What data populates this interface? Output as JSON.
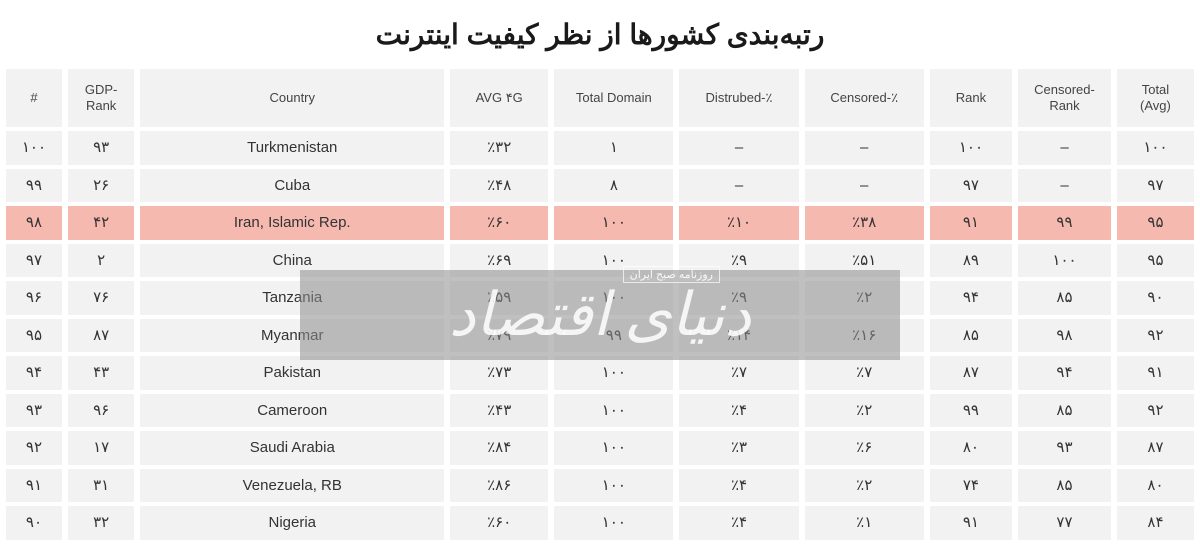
{
  "title": "رتبه‌بندی کشورها از نظر کیفیت اینترنت",
  "columns": [
    {
      "key": "num",
      "label": "#",
      "class": "col-num"
    },
    {
      "key": "gdp",
      "label": "GDP-\nRank",
      "class": "col-gdp"
    },
    {
      "key": "country",
      "label": "Country",
      "class": "col-country"
    },
    {
      "key": "avg4g",
      "label": "AVG ۴G",
      "class": "col-avg4g"
    },
    {
      "key": "domain",
      "label": "Total Domain",
      "class": "col-domain"
    },
    {
      "key": "dist",
      "label": "Distrubed-٪",
      "class": "col-dist"
    },
    {
      "key": "cens",
      "label": "Censored-٪",
      "class": "col-cens"
    },
    {
      "key": "rank",
      "label": "Rank",
      "class": "col-rank"
    },
    {
      "key": "crank",
      "label": "Censored-\nRank",
      "class": "col-crank"
    },
    {
      "key": "total",
      "label": "Total\n(Avg)",
      "class": "col-total"
    }
  ],
  "rows": [
    {
      "num": "۱۰۰",
      "gdp": "۹۳",
      "country": "Turkmenistan",
      "avg4g": "٪۳۲",
      "domain": "۱",
      "dist": "–",
      "cens": "–",
      "rank": "۱۰۰",
      "crank": "–",
      "total": "۱۰۰",
      "hl": false
    },
    {
      "num": "۹۹",
      "gdp": "۲۶",
      "country": "Cuba",
      "avg4g": "٪۴۸",
      "domain": "۸",
      "dist": "–",
      "cens": "–",
      "rank": "۹۷",
      "crank": "–",
      "total": "۹۷",
      "hl": false
    },
    {
      "num": "۹۸",
      "gdp": "۴۲",
      "country": "Iran, Islamic Rep.",
      "avg4g": "٪۶۰",
      "domain": "۱۰۰",
      "dist": "٪۱۰",
      "cens": "٪۳۸",
      "rank": "۹۱",
      "crank": "۹۹",
      "total": "۹۵",
      "hl": true
    },
    {
      "num": "۹۷",
      "gdp": "۲",
      "country": "China",
      "avg4g": "٪۶۹",
      "domain": "۱۰۰",
      "dist": "٪۹",
      "cens": "٪۵۱",
      "rank": "۸۹",
      "crank": "۱۰۰",
      "total": "۹۵",
      "hl": false
    },
    {
      "num": "۹۶",
      "gdp": "۷۶",
      "country": "Tanzania",
      "avg4g": "٪۵۹",
      "domain": "۱۰۰",
      "dist": "٪۹",
      "cens": "٪۲",
      "rank": "۹۴",
      "crank": "۸۵",
      "total": "۹۰",
      "hl": false
    },
    {
      "num": "۹۵",
      "gdp": "۸۷",
      "country": "Myanmar",
      "avg4g": "٪۷۹",
      "domain": "۹۹",
      "dist": "٪۱۴",
      "cens": "٪۱۶",
      "rank": "۸۵",
      "crank": "۹۸",
      "total": "۹۲",
      "hl": false
    },
    {
      "num": "۹۴",
      "gdp": "۴۳",
      "country": "Pakistan",
      "avg4g": "٪۷۳",
      "domain": "۱۰۰",
      "dist": "٪۷",
      "cens": "٪۷",
      "rank": "۸۷",
      "crank": "۹۴",
      "total": "۹۱",
      "hl": false
    },
    {
      "num": "۹۳",
      "gdp": "۹۶",
      "country": "Cameroon",
      "avg4g": "٪۴۳",
      "domain": "۱۰۰",
      "dist": "٪۴",
      "cens": "٪۲",
      "rank": "۹۹",
      "crank": "۸۵",
      "total": "۹۲",
      "hl": false
    },
    {
      "num": "۹۲",
      "gdp": "۱۷",
      "country": "Saudi Arabia",
      "avg4g": "٪۸۴",
      "domain": "۱۰۰",
      "dist": "٪۳",
      "cens": "٪۶",
      "rank": "۸۰",
      "crank": "۹۳",
      "total": "۸۷",
      "hl": false
    },
    {
      "num": "۹۱",
      "gdp": "۳۱",
      "country": "Venezuela, RB",
      "avg4g": "٪۸۶",
      "domain": "۱۰۰",
      "dist": "٪۴",
      "cens": "٪۲",
      "rank": "۷۴",
      "crank": "۸۵",
      "total": "۸۰",
      "hl": false
    },
    {
      "num": "۹۰",
      "gdp": "۳۲",
      "country": "Nigeria",
      "avg4g": "٪۶۰",
      "domain": "۱۰۰",
      "dist": "٪۴",
      "cens": "٪۱",
      "rank": "۹۱",
      "crank": "۷۷",
      "total": "۸۴",
      "hl": false
    }
  ],
  "watermark": {
    "main": "دنیای اقتصاد",
    "sub": "روزنامه صبح ایران"
  },
  "styling": {
    "highlight_bg": "#f6b9b0",
    "cell_bg": "#f2f2f2",
    "title_color": "#1a1a1a",
    "text_color": "#333333"
  }
}
